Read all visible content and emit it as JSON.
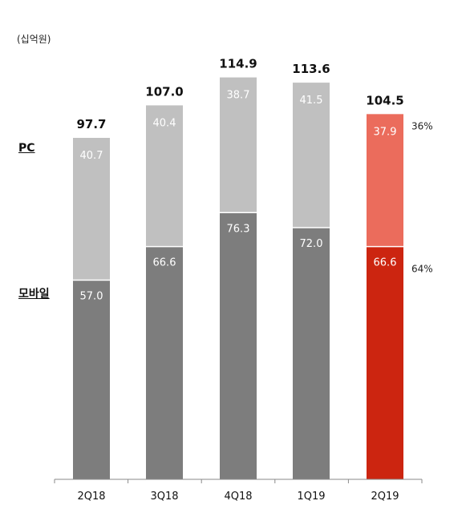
{
  "unit_label": "(십억원)",
  "segment_labels": {
    "pc": "PC",
    "mobile": "모바일"
  },
  "colors": {
    "pc": "#c0c0c0",
    "mobile": "#7d7d7d",
    "pc_highlight": "#eb6c5c",
    "mobile_highlight": "#cc2510",
    "axis": "#8a8a8a"
  },
  "chart_data": {
    "type": "bar",
    "stacked": true,
    "categories": [
      "2Q18",
      "3Q18",
      "4Q18",
      "1Q19",
      "2Q19"
    ],
    "series": [
      {
        "name": "모바일",
        "values": [
          57.0,
          66.6,
          76.3,
          72.0,
          66.6
        ],
        "labels": [
          "57.0",
          "66.6",
          "76.3",
          "72.0",
          "66.6"
        ]
      },
      {
        "name": "PC",
        "values": [
          40.7,
          40.4,
          38.7,
          41.5,
          37.9
        ],
        "labels": [
          "40.7",
          "40.4",
          "38.7",
          "41.5",
          "37.9"
        ]
      }
    ],
    "totals": [
      "97.7",
      "107.0",
      "114.9",
      "113.6",
      "104.5"
    ],
    "highlight_category": "2Q19",
    "shares": {
      "PC": "36%",
      "모바일": "64%"
    },
    "ylim": [
      0,
      114.9
    ]
  }
}
